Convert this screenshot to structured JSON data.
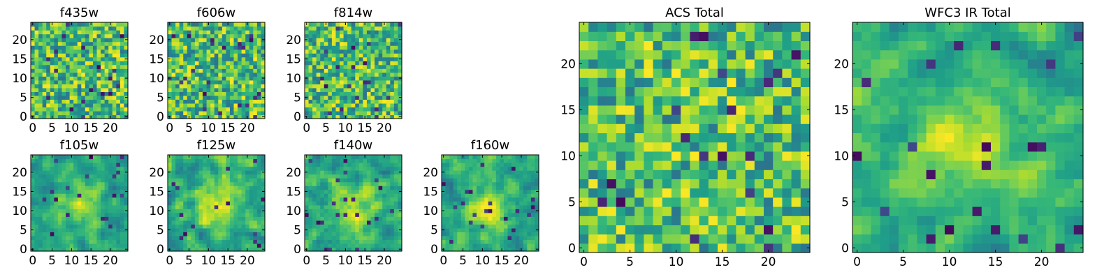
{
  "chart_data": [
    {
      "type": "heatmap",
      "title": "f435w",
      "colormap": "viridis",
      "xticks": [
        "0",
        "5",
        "10",
        "15",
        "20"
      ],
      "yticks": [
        "0",
        "5",
        "10",
        "15",
        "20"
      ],
      "xlim": [
        0,
        25
      ],
      "ylim": [
        0,
        25
      ],
      "grid": false
    },
    {
      "type": "heatmap",
      "title": "f606w",
      "colormap": "viridis",
      "xticks": [
        "0",
        "5",
        "10",
        "15",
        "20"
      ],
      "yticks": [
        "0",
        "5",
        "10",
        "15",
        "20"
      ],
      "xlim": [
        0,
        25
      ],
      "ylim": [
        0,
        25
      ],
      "grid": false
    },
    {
      "type": "heatmap",
      "title": "f814w",
      "colormap": "viridis",
      "xticks": [
        "0",
        "5",
        "10",
        "15",
        "20"
      ],
      "yticks": [
        "0",
        "5",
        "10",
        "15",
        "20"
      ],
      "xlim": [
        0,
        25
      ],
      "ylim": [
        0,
        25
      ],
      "grid": false
    },
    {
      "type": "heatmap",
      "title": "f105w",
      "colormap": "viridis",
      "xticks": [
        "0",
        "5",
        "10",
        "15",
        "20"
      ],
      "yticks": [
        "0",
        "5",
        "10",
        "15",
        "20"
      ],
      "xlim": [
        0,
        25
      ],
      "ylim": [
        0,
        25
      ],
      "grid": false
    },
    {
      "type": "heatmap",
      "title": "f125w",
      "colormap": "viridis",
      "xticks": [
        "0",
        "5",
        "10",
        "15",
        "20"
      ],
      "yticks": [
        "0",
        "5",
        "10",
        "15",
        "20"
      ],
      "xlim": [
        0,
        25
      ],
      "ylim": [
        0,
        25
      ],
      "grid": false
    },
    {
      "type": "heatmap",
      "title": "f140w",
      "colormap": "viridis",
      "xticks": [
        "0",
        "5",
        "10",
        "15",
        "20"
      ],
      "yticks": [
        "0",
        "5",
        "10",
        "15",
        "20"
      ],
      "xlim": [
        0,
        25
      ],
      "ylim": [
        0,
        25
      ],
      "grid": false
    },
    {
      "type": "heatmap",
      "title": "f160w",
      "colormap": "viridis",
      "xticks": [
        "0",
        "5",
        "10",
        "15",
        "20"
      ],
      "yticks": [
        "0",
        "5",
        "10",
        "15",
        "20"
      ],
      "xlim": [
        0,
        25
      ],
      "ylim": [
        0,
        25
      ],
      "grid": false
    },
    {
      "type": "heatmap",
      "title": "ACS Total",
      "colormap": "viridis",
      "xticks": [
        "0",
        "5",
        "10",
        "15",
        "20"
      ],
      "yticks": [
        "0",
        "5",
        "10",
        "15",
        "20"
      ],
      "xlim": [
        0,
        25
      ],
      "ylim": [
        0,
        25
      ],
      "grid": false
    },
    {
      "type": "heatmap",
      "title": "WFC3 IR Total",
      "colormap": "viridis",
      "xticks": [
        "0",
        "5",
        "10",
        "15",
        "20"
      ],
      "yticks": [
        "0",
        "5",
        "10",
        "15",
        "20"
      ],
      "xlim": [
        0,
        25
      ],
      "ylim": [
        0,
        25
      ],
      "grid": false
    }
  ]
}
